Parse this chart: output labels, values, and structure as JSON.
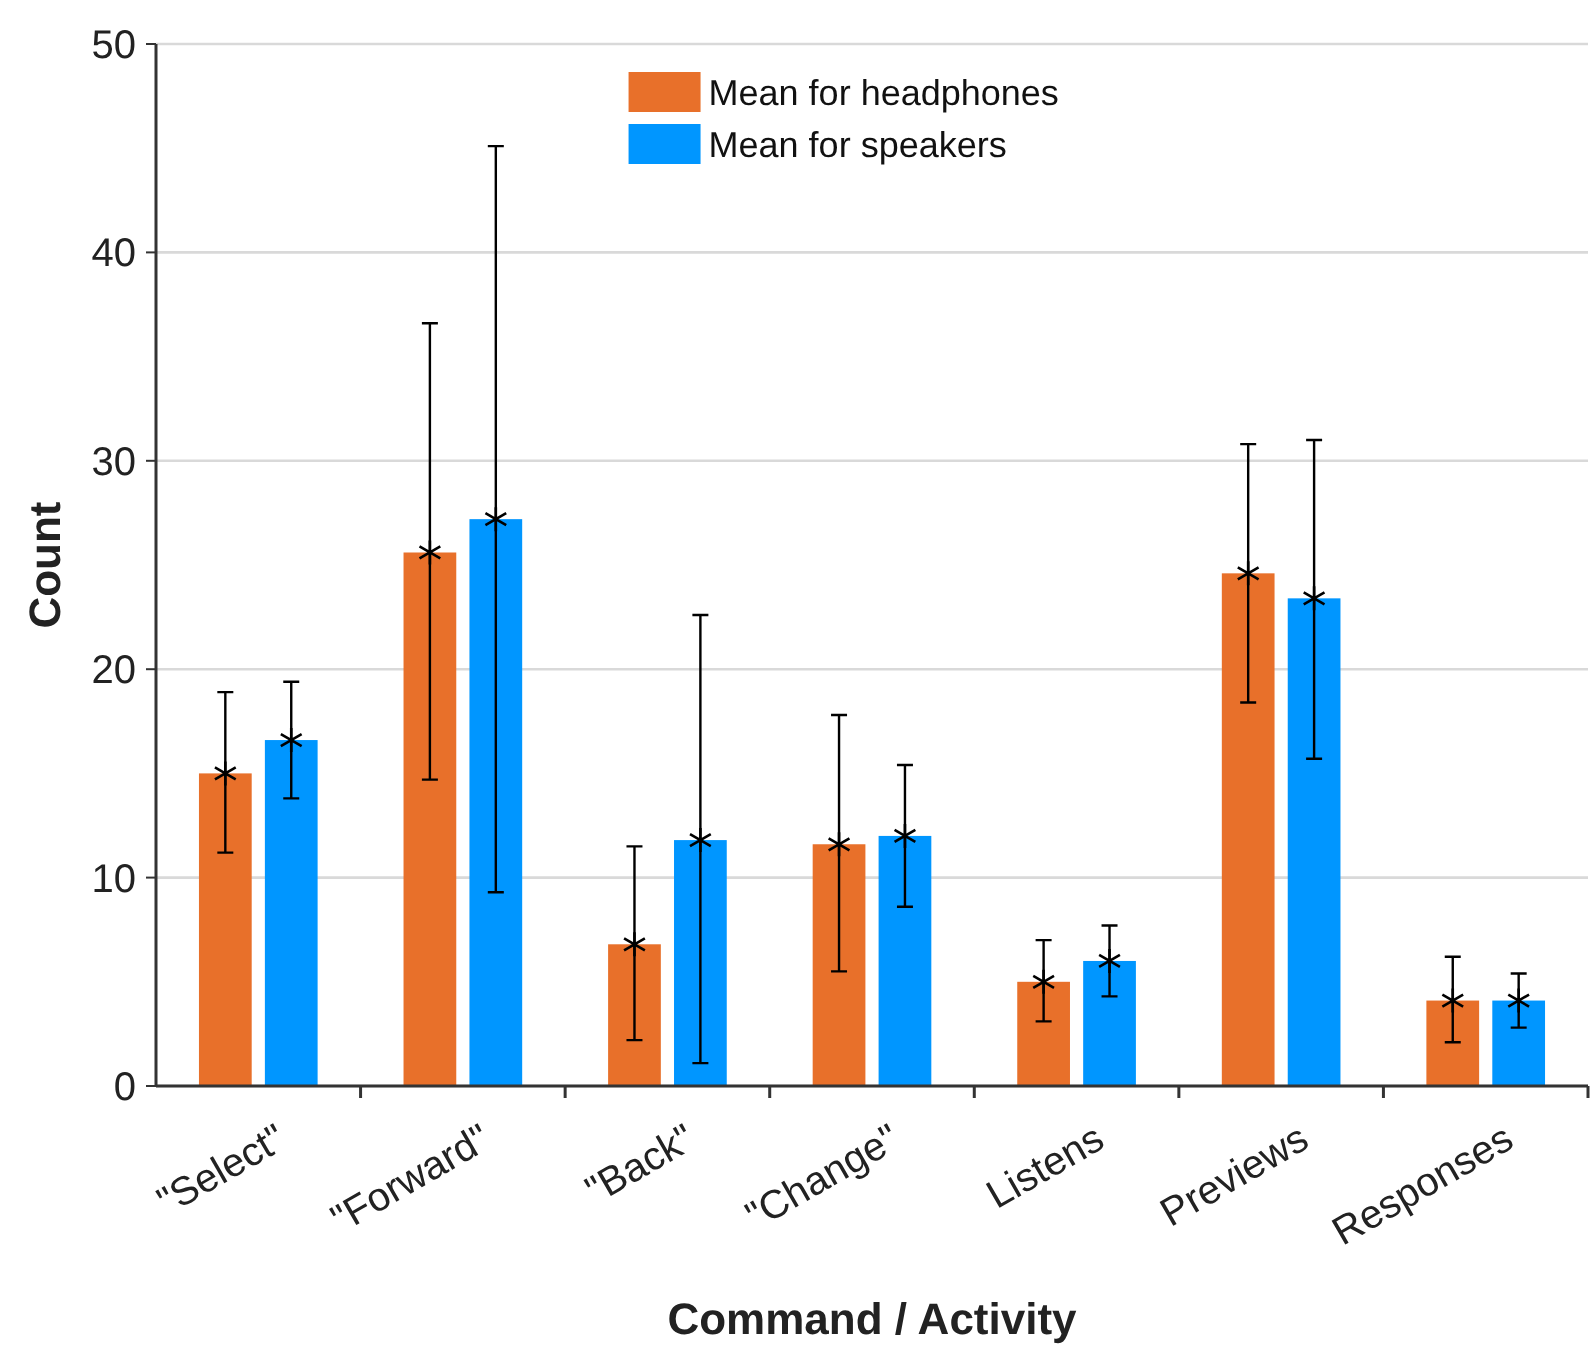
{
  "chart_data": {
    "type": "bar",
    "xlabel": "Command / Activity",
    "ylabel": "Count",
    "categories": [
      "\"Select\"",
      "\"Forward\"",
      "\"Back\"",
      "\"Change\"",
      "Listens",
      "Previews",
      "Responses"
    ],
    "series": [
      {
        "name": "Mean for headphones",
        "color": "#e8702a",
        "values": [
          15.0,
          25.6,
          6.8,
          11.6,
          5.0,
          24.6,
          4.1
        ],
        "errors": [
          [
            11.2,
            18.9
          ],
          [
            14.7,
            36.6
          ],
          [
            2.2,
            11.5
          ],
          [
            5.5,
            17.8
          ],
          [
            3.1,
            7.0
          ],
          [
            18.4,
            30.8
          ],
          [
            2.1,
            6.2
          ]
        ]
      },
      {
        "name": "Mean for speakers",
        "color": "#0096ff",
        "values": [
          16.6,
          27.2,
          11.8,
          12.0,
          6.0,
          23.4,
          4.1
        ],
        "errors": [
          [
            13.8,
            19.4
          ],
          [
            9.3,
            45.1
          ],
          [
            1.1,
            22.6
          ],
          [
            8.6,
            15.4
          ],
          [
            4.3,
            7.7
          ],
          [
            15.7,
            31.0
          ],
          [
            2.8,
            5.4
          ]
        ]
      },
      {
        "type": "scatter",
        "color": "#000000",
        "marker": "cross",
        "x": [
          "\"Select\"",
          "\"Forward\"",
          "\"Back\"",
          "\"Change\"",
          "Listens",
          "Previews",
          "Responses"
        ],
        "values": [
          15.0,
          25.6,
          6.8,
          11.6,
          5.0,
          24.6,
          4.1
        ]
      },
      {
        "type": "scatter",
        "color": "#000000",
        "marker": "cross",
        "x": [
          "\"Select\"",
          "\"Forward\"",
          "\"Back\"",
          "\"Change\"",
          "Listens",
          "Previews",
          "Responses"
        ],
        "values": [
          16.6,
          27.2,
          11.8,
          12.0,
          6.0,
          23.4,
          4.1
        ]
      }
    ],
    "ylim": [
      0,
      50
    ],
    "yticks": [
      0,
      10,
      20,
      30,
      40,
      50
    ],
    "grid": "y",
    "legend": "top"
  }
}
